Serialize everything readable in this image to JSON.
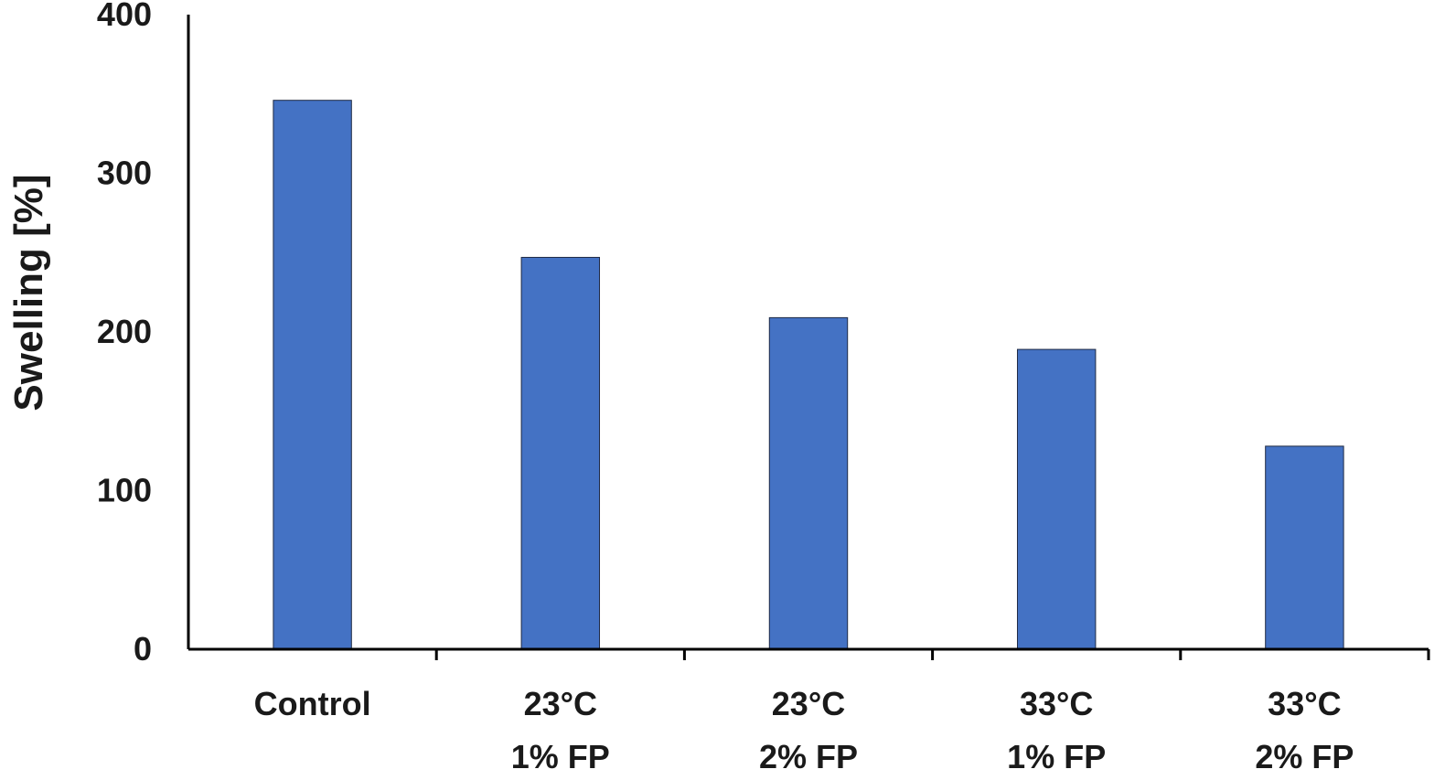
{
  "chart_data": {
    "type": "bar",
    "title": "",
    "xlabel": "",
    "ylabel": "Swelling [%]",
    "ylim": [
      0,
      400
    ],
    "yticks": [
      0,
      100,
      200,
      300,
      400
    ],
    "grid": false,
    "legend": "none",
    "bar_color": "#4472C4",
    "categories": [
      [
        "Control"
      ],
      [
        "23°C",
        "1% FP"
      ],
      [
        "23°C",
        "2% FP"
      ],
      [
        "33°C",
        "1% FP"
      ],
      [
        "33°C",
        "2% FP"
      ]
    ],
    "values": [
      346,
      247,
      209,
      189,
      128
    ]
  }
}
